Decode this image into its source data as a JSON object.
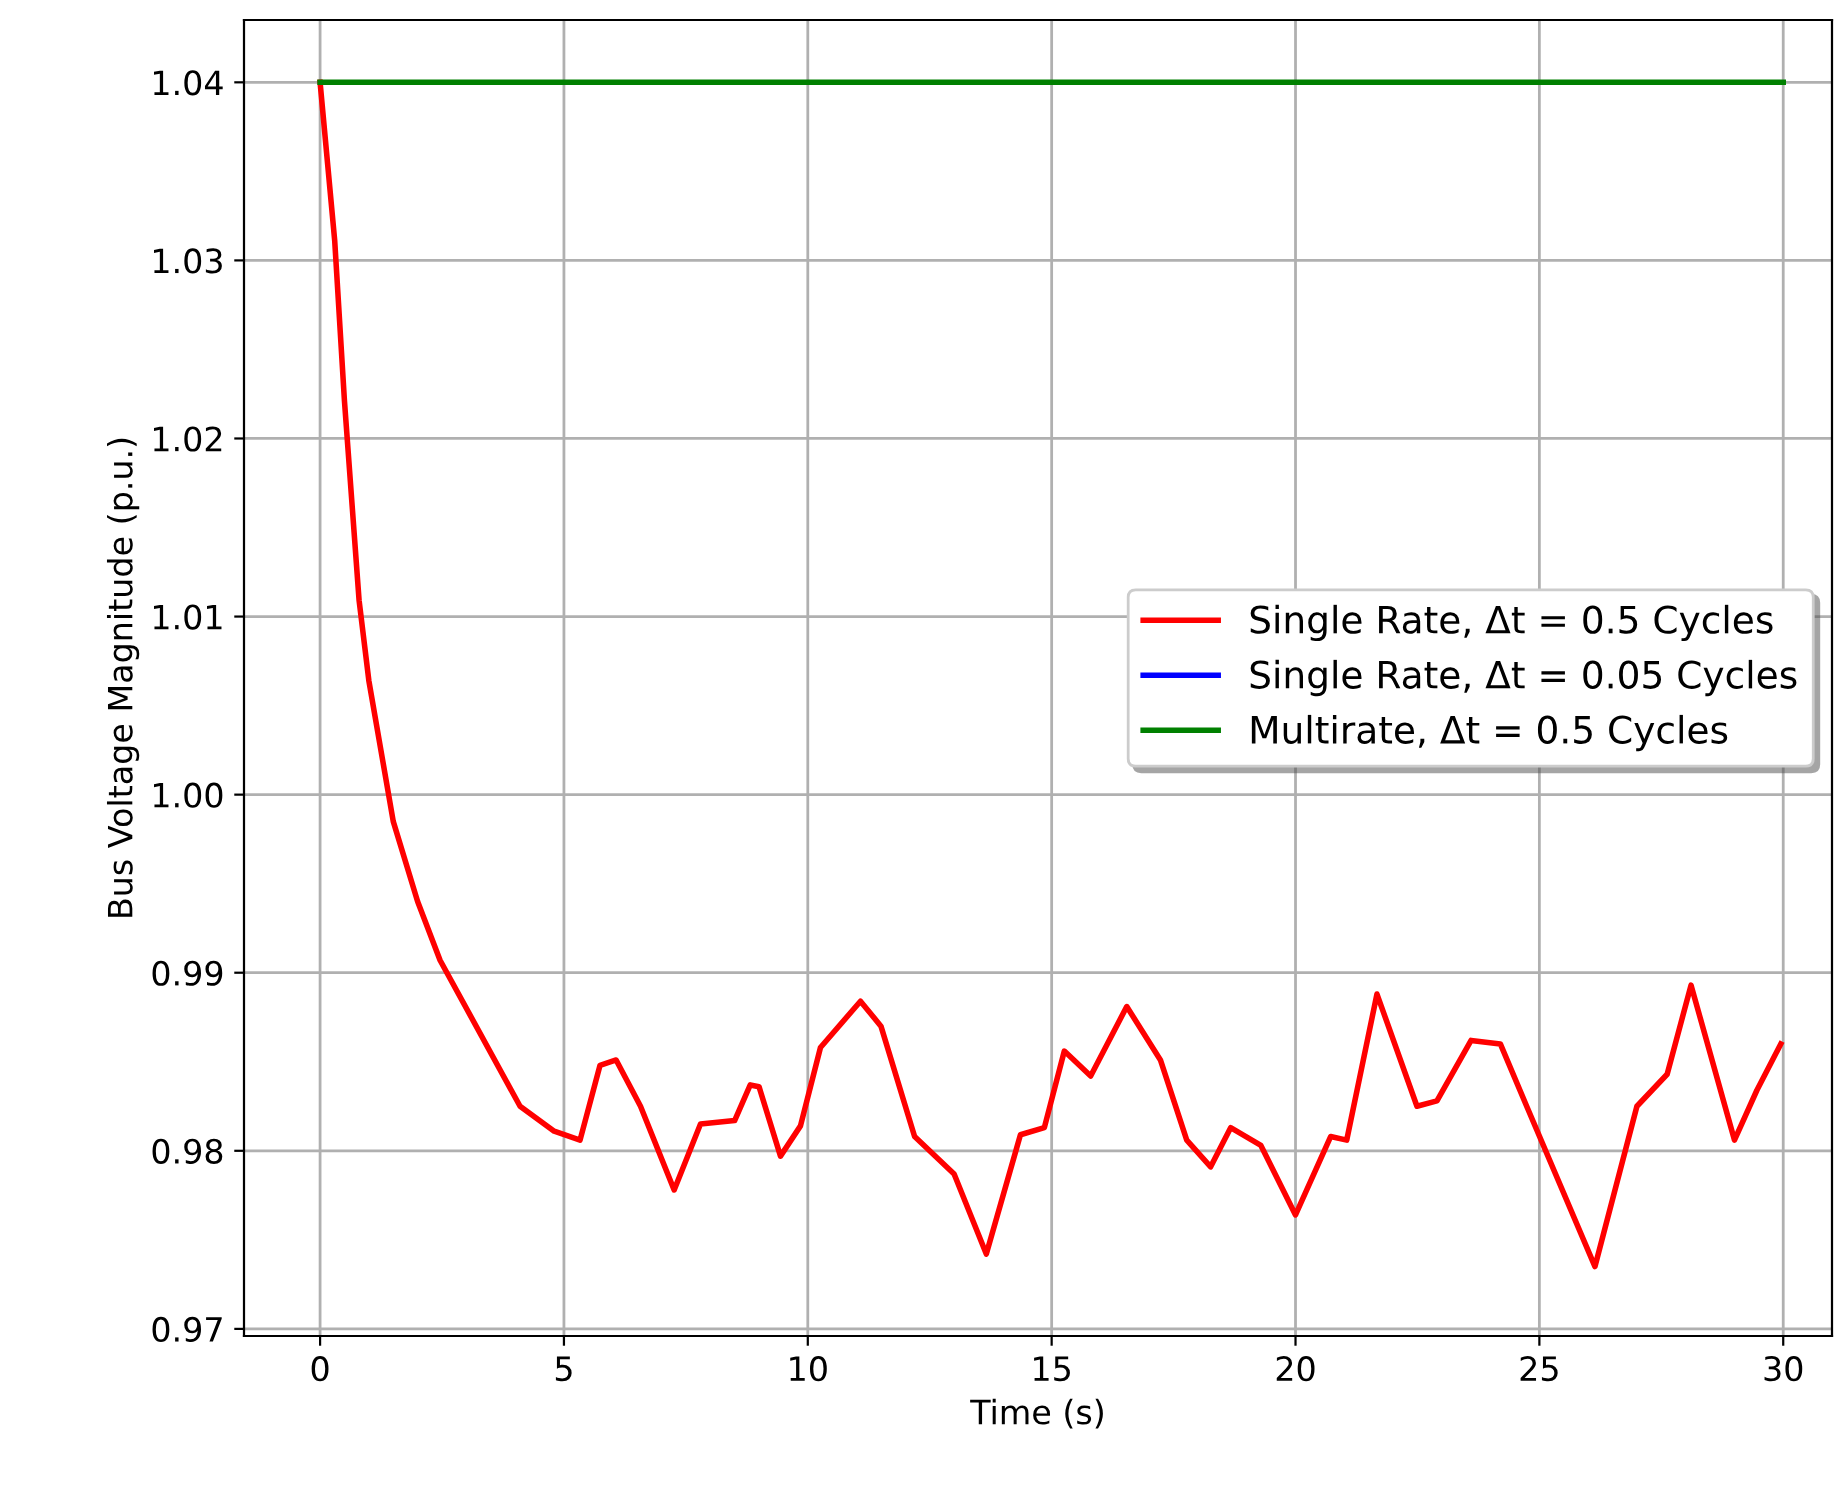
{
  "chart_data": {
    "type": "line",
    "xlabel": "Time (s)",
    "ylabel": "Bus Voltage Magnitude (p.u.)",
    "xlim": [
      -1.56,
      31.0
    ],
    "ylim": [
      0.9696,
      1.0435
    ],
    "xticks": [
      0,
      5,
      10,
      15,
      20,
      25,
      30
    ],
    "yticks": [
      {
        "value": 0.97,
        "label": "0.97"
      },
      {
        "value": 0.98,
        "label": "0.98"
      },
      {
        "value": 0.99,
        "label": "0.99"
      },
      {
        "value": 1.0,
        "label": "1.00"
      },
      {
        "value": 1.01,
        "label": "1.01"
      },
      {
        "value": 1.02,
        "label": "1.02"
      },
      {
        "value": 1.03,
        "label": "1.03"
      },
      {
        "value": 1.04,
        "label": "1.04"
      }
    ],
    "grid": true,
    "legend": "right",
    "line_style": "solid",
    "marker": "none",
    "series": [
      {
        "name": "Single Rate, Δt = 0.5 Cycles",
        "color": "#ff0000",
        "x": [
          0,
          0.3,
          0.5,
          0.8,
          1.0,
          1.5,
          2.0,
          2.46,
          4.1,
          4.8,
          5.33,
          5.74,
          6.07,
          6.57,
          7.26,
          7.8,
          8.5,
          8.82,
          9.0,
          9.44,
          9.85,
          10.26,
          11.08,
          11.5,
          12.19,
          13.0,
          13.66,
          14.36,
          14.85,
          15.26,
          15.8,
          16.54,
          17.23,
          17.77,
          18.26,
          18.67,
          19.29,
          20.0,
          20.72,
          21.05,
          21.67,
          22.49,
          22.9,
          23.6,
          24.2,
          24.74,
          26.14,
          27.0,
          27.62,
          28.11,
          29.0,
          29.46,
          29.95
        ],
        "values": [
          1.04,
          1.0311,
          1.0221,
          1.0109,
          1.0064,
          0.9985,
          0.994,
          0.9907,
          0.9825,
          0.9811,
          0.9806,
          0.9848,
          0.9851,
          0.9825,
          0.9778,
          0.9815,
          0.9817,
          0.9837,
          0.9836,
          0.9797,
          0.9814,
          0.9858,
          0.9884,
          0.987,
          0.9808,
          0.9787,
          0.9742,
          0.9809,
          0.9813,
          0.9856,
          0.9842,
          0.9881,
          0.9851,
          0.9806,
          0.9791,
          0.9813,
          0.9803,
          0.9764,
          0.9808,
          0.9806,
          0.9888,
          0.9825,
          0.9828,
          0.9862,
          0.986,
          0.9825,
          0.9735,
          0.9825,
          0.9843,
          0.9893,
          0.9806,
          0.9834,
          0.986
        ]
      },
      {
        "name": "Single Rate, Δt = 0.05 Cycles",
        "color": "#0000ff",
        "values": [
          null
        ]
      },
      {
        "name": "Multirate, Δt = 0.5 Cycles",
        "color": "#008000",
        "x": [
          0,
          5,
          10,
          15,
          20,
          25,
          30
        ],
        "values": [
          1.04,
          1.04,
          1.04,
          1.04,
          1.04,
          1.04,
          1.04
        ]
      }
    ]
  }
}
